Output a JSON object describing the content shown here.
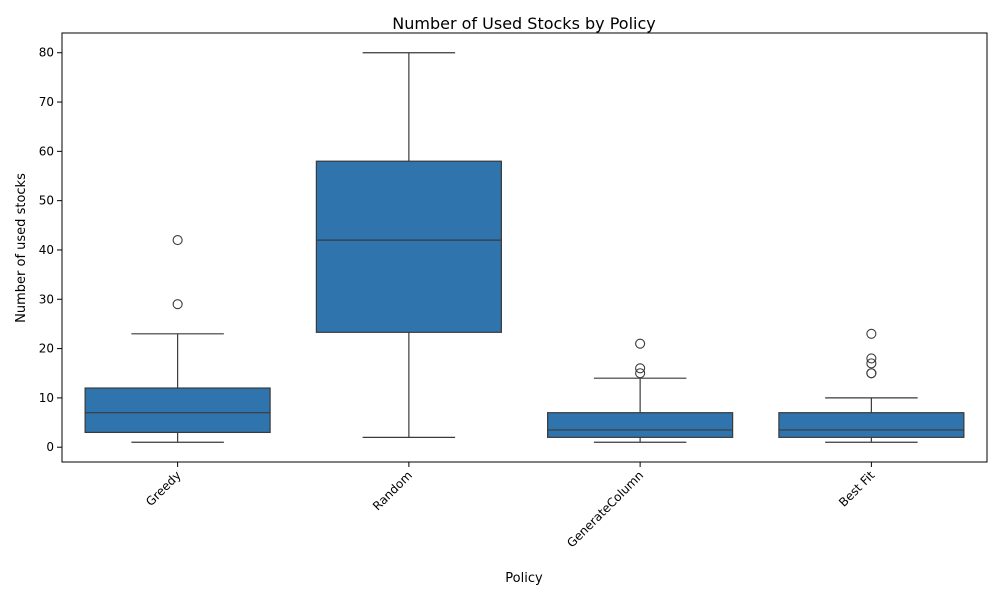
{
  "chart_data": {
    "type": "box",
    "title": "Number of Used Stocks by Policy",
    "xlabel": "Policy",
    "ylabel": "Number of used stocks",
    "ylim": [
      -3,
      84
    ],
    "yticks": [
      0,
      10,
      20,
      30,
      40,
      50,
      60,
      70,
      80
    ],
    "grid": false,
    "box_color": "#2f74ad",
    "line_color": "#3a3a3a",
    "categories": [
      "Greedy",
      "Random",
      "GenerateColumn",
      "Best Fit"
    ],
    "boxes": [
      {
        "category": "Greedy",
        "whisker_low": 1,
        "q1": 3,
        "median": 7,
        "q3": 12,
        "whisker_high": 23,
        "outliers": [
          29,
          42
        ]
      },
      {
        "category": "Random",
        "whisker_low": 2,
        "q1": 23.3,
        "median": 42,
        "q3": 58,
        "whisker_high": 80,
        "outliers": []
      },
      {
        "category": "GenerateColumn",
        "whisker_low": 1,
        "q1": 2,
        "median": 3.5,
        "q3": 7,
        "whisker_high": 14,
        "outliers": [
          15,
          16,
          21
        ]
      },
      {
        "category": "Best Fit",
        "whisker_low": 1,
        "q1": 2,
        "median": 3.5,
        "q3": 7,
        "whisker_high": 10,
        "outliers": [
          15,
          15,
          17,
          18,
          23
        ]
      }
    ]
  }
}
